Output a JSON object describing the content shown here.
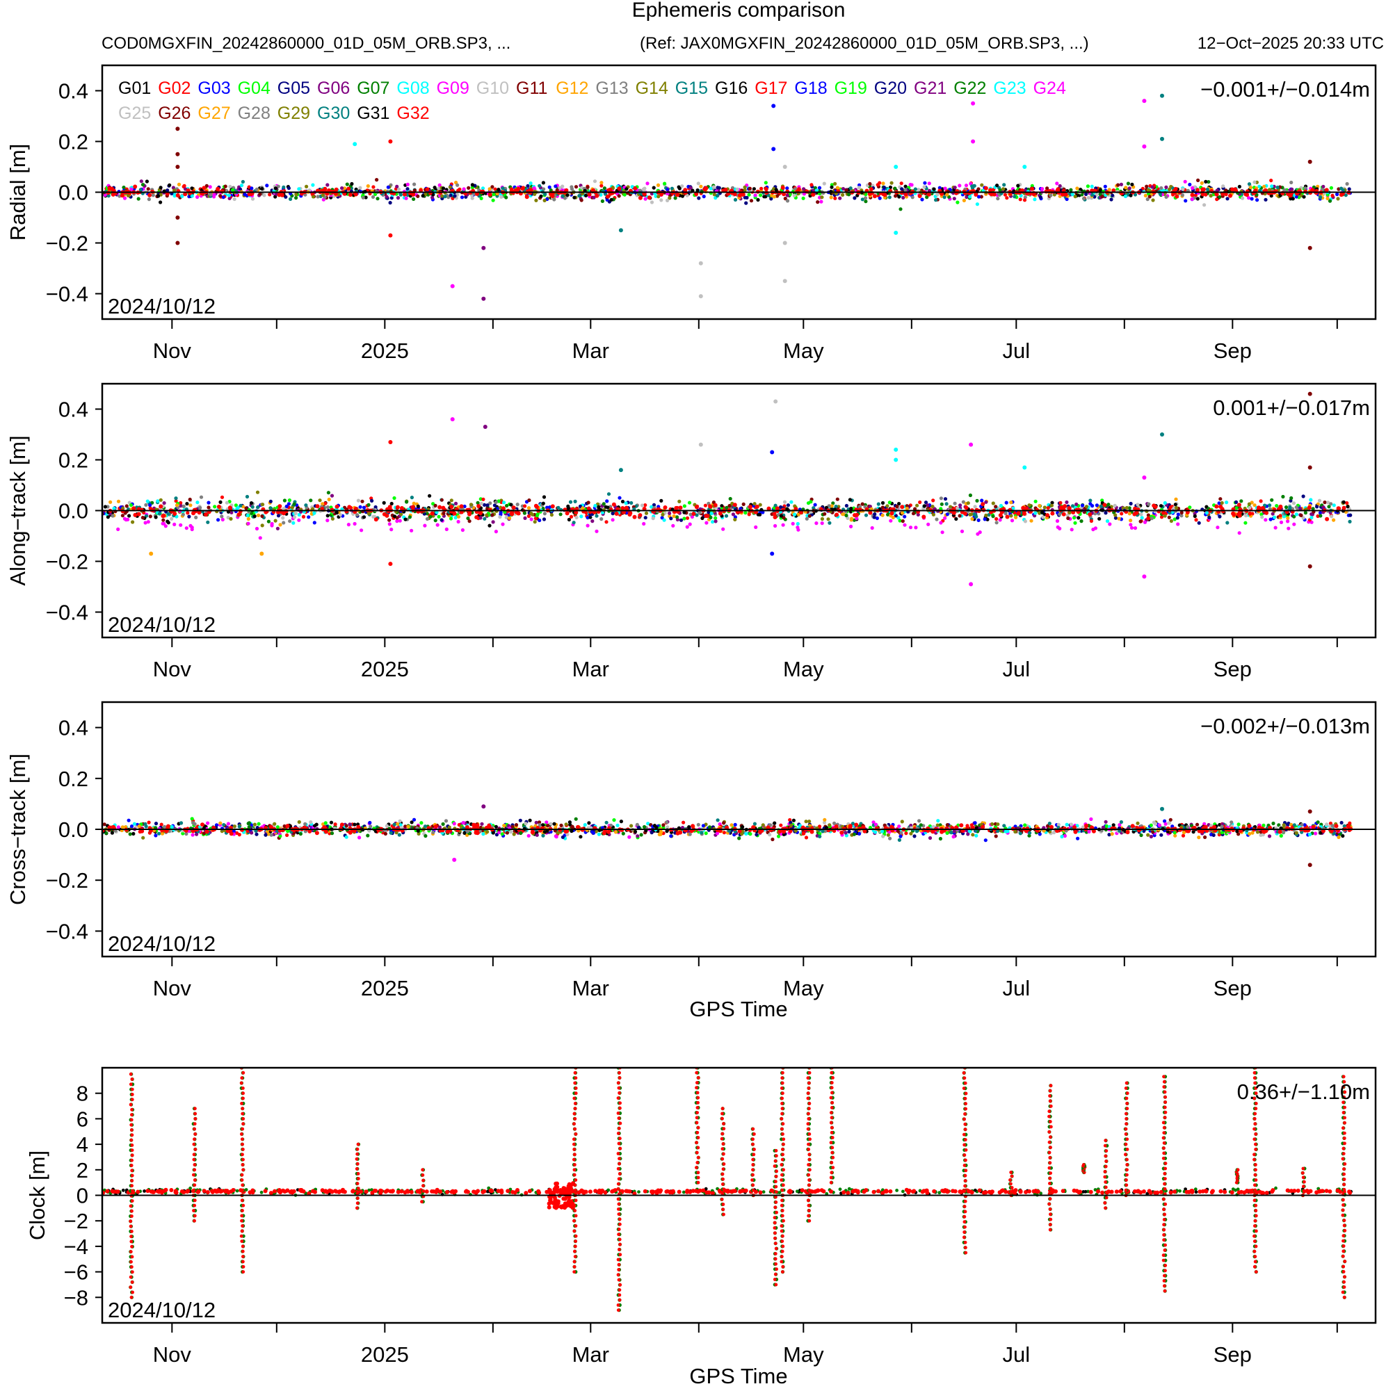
{
  "chart_data": {
    "type": "scatter",
    "title": "Ephemeris comparison",
    "subtitle_left": "COD0MGXFIN_20242860000_01D_05M_ORB.SP3, ...",
    "subtitle_ref": "(Ref: JAX0MGXFIN_20242860000_01D_05M_ORB.SP3, ...)",
    "timestamp": "12−Oct−2025 20:33 UTC",
    "x_unit": "days since 2024/10/12",
    "xlim": [
      0,
      365
    ],
    "x_ticks": [
      {
        "label": "Nov",
        "day": 20
      },
      {
        "label": "2025",
        "day": 81
      },
      {
        "label": "Mar",
        "day": 140
      },
      {
        "label": "May",
        "day": 201
      },
      {
        "label": "Jul",
        "day": 262
      },
      {
        "label": "Sep",
        "day": 324
      }
    ],
    "x_minor_days": [
      50,
      112,
      171,
      232,
      293,
      354
    ],
    "xlabel": "GPS Time",
    "start_date_label": "2024/10/12",
    "legend": {
      "placement": "top-left",
      "entries": [
        "G01",
        "G02",
        "G03",
        "G04",
        "G05",
        "G06",
        "G07",
        "G08",
        "G09",
        "G10",
        "G11",
        "G12",
        "G13",
        "G14",
        "G15",
        "G16",
        "G17",
        "G18",
        "G19",
        "G20",
        "G21",
        "G22",
        "G23",
        "G24",
        "G25",
        "G26",
        "G27",
        "G28",
        "G29",
        "G30",
        "G31",
        "G32"
      ],
      "colors": [
        "#000000",
        "#FF0000",
        "#0000FF",
        "#00FF00",
        "#000080",
        "#800080",
        "#008000",
        "#00FFFF",
        "#FF00FF",
        "#C0C0C0",
        "#800000",
        "#FFA500",
        "#808080",
        "#808000",
        "#008080",
        "#000000",
        "#FF0000",
        "#0000FF",
        "#00FF00",
        "#000080",
        "#800080",
        "#008000",
        "#00FFFF",
        "#FF00FF",
        "#C0C0C0",
        "#800000",
        "#FFA500",
        "#808080",
        "#808000",
        "#008080",
        "#000000",
        "#FF0000"
      ]
    },
    "panels": [
      {
        "ylabel": "Radial [m]",
        "ylim": [
          -0.5,
          0.5
        ],
        "y_ticks": [
          "−0.4",
          "−0.2",
          "0.0",
          "0.2",
          "0.4"
        ],
        "y_tick_values": [
          -0.4,
          -0.2,
          0,
          0.2,
          0.4
        ],
        "stat": "−0.001+/−0.014m",
        "noise_sd": 0.015,
        "outliers": [
          [
            21.6,
            0.25,
            10
          ],
          [
            21.6,
            0.15,
            10
          ],
          [
            21.6,
            0.1,
            10
          ],
          [
            21.6,
            -0.1,
            10
          ],
          [
            21.6,
            -0.2,
            10
          ],
          [
            100.4,
            -0.37,
            8
          ],
          [
            109.3,
            -0.42,
            5
          ],
          [
            109.3,
            -0.22,
            5
          ],
          [
            192.4,
            0.34,
            2
          ],
          [
            192.4,
            0.17,
            2
          ],
          [
            195.7,
            0.1,
            9
          ],
          [
            195.7,
            -0.2,
            9
          ],
          [
            195.7,
            -0.35,
            9
          ],
          [
            171.6,
            -0.28,
            9
          ],
          [
            171.6,
            -0.41,
            9
          ],
          [
            249.6,
            0.35,
            8
          ],
          [
            249.6,
            0.2,
            8
          ],
          [
            298.7,
            0.36,
            8
          ],
          [
            298.7,
            0.18,
            8
          ],
          [
            303.8,
            0.38,
            14
          ],
          [
            303.8,
            0.21,
            14
          ],
          [
            346.2,
            0.12,
            10
          ],
          [
            346.2,
            -0.22,
            10
          ],
          [
            72.4,
            0.19,
            7
          ],
          [
            82.6,
            0.2,
            1
          ],
          [
            82.6,
            -0.17,
            1
          ],
          [
            148.7,
            -0.15,
            14
          ],
          [
            227.5,
            0.1,
            7
          ],
          [
            227.5,
            -0.16,
            7
          ],
          [
            264.4,
            0.1,
            7
          ]
        ]
      },
      {
        "ylabel": "Along−track [m]",
        "ylim": [
          -0.5,
          0.5
        ],
        "y_ticks": [
          "−0.4",
          "−0.2",
          "0.0",
          "0.2",
          "0.4"
        ],
        "y_tick_values": [
          -0.4,
          -0.2,
          0,
          0.2,
          0.4
        ],
        "stat": "0.001+/−0.017m",
        "noise_sd": 0.02,
        "outliers": [
          [
            100.4,
            0.36,
            8
          ],
          [
            109.8,
            0.33,
            5
          ],
          [
            171.6,
            0.26,
            9
          ],
          [
            193,
            0.43,
            9
          ],
          [
            192,
            0.23,
            2
          ],
          [
            192,
            -0.17,
            2
          ],
          [
            82.6,
            0.27,
            1
          ],
          [
            82.6,
            -0.21,
            1
          ],
          [
            227.5,
            0.24,
            7
          ],
          [
            227.5,
            0.2,
            7
          ],
          [
            249,
            0.26,
            8
          ],
          [
            249,
            -0.29,
            8
          ],
          [
            264.4,
            0.17,
            7
          ],
          [
            303.8,
            0.3,
            14
          ],
          [
            298.7,
            0.13,
            8
          ],
          [
            298.7,
            -0.26,
            8
          ],
          [
            346.2,
            0.46,
            10
          ],
          [
            346.2,
            0.17,
            10
          ],
          [
            346.2,
            -0.22,
            10
          ],
          [
            14,
            -0.17,
            11
          ],
          [
            45.7,
            -0.17,
            11
          ],
          [
            148.7,
            0.16,
            14
          ]
        ]
      },
      {
        "ylabel": "Cross−track [m]",
        "ylim": [
          -0.5,
          0.5
        ],
        "y_ticks": [
          "−0.4",
          "−0.2",
          "0.0",
          "0.2",
          "0.4"
        ],
        "y_tick_values": [
          -0.4,
          -0.2,
          0,
          0.2,
          0.4
        ],
        "stat": "−0.002+/−0.013m",
        "noise_sd": 0.013,
        "outliers": [
          [
            109.3,
            0.09,
            5
          ],
          [
            100.9,
            -0.12,
            8
          ],
          [
            346.2,
            0.07,
            10
          ],
          [
            346.2,
            -0.14,
            10
          ],
          [
            303.8,
            0.08,
            14
          ]
        ]
      },
      {
        "ylabel": "Clock [m]",
        "ylim": [
          -10,
          10
        ],
        "y_ticks": [
          "−8",
          "−6",
          "−4",
          "−2",
          "0",
          "2",
          "4",
          "6",
          "8"
        ],
        "y_tick_values": [
          -8,
          -6,
          -4,
          -2,
          0,
          2,
          4,
          6,
          8
        ],
        "stat": "0.36+/−1.10m",
        "noise_sd": 0.1,
        "baseline": 0.3,
        "spikes": [
          [
            8.4,
            -8,
            9.5
          ],
          [
            26.4,
            -2,
            6.8
          ],
          [
            40.2,
            -6,
            10
          ],
          [
            73.2,
            -1,
            4
          ],
          [
            91.8,
            -0.5,
            2
          ],
          [
            135.5,
            -6,
            10
          ],
          [
            148.2,
            -9,
            10
          ],
          [
            170.6,
            1,
            10
          ],
          [
            177.9,
            -1.5,
            6.8
          ],
          [
            186.6,
            0,
            5.2
          ],
          [
            193,
            -7,
            3.5
          ],
          [
            195,
            -6,
            10
          ],
          [
            202.6,
            -2,
            10
          ],
          [
            209.2,
            1,
            10
          ],
          [
            247.3,
            -4.5,
            10
          ],
          [
            260.5,
            0,
            1.8
          ],
          [
            271.7,
            -2.7,
            8.6
          ],
          [
            281.4,
            1.8,
            2.4
          ],
          [
            287.7,
            -1,
            4.3
          ],
          [
            293.6,
            0,
            8.8
          ],
          [
            304.5,
            -7.5,
            9.3
          ],
          [
            325.4,
            1,
            2
          ],
          [
            330.5,
            -6,
            10
          ],
          [
            344.4,
            0,
            2.1
          ],
          [
            355.9,
            -8,
            9.3
          ]
        ],
        "block": [
          128,
          135,
          -1,
          1
        ]
      }
    ]
  }
}
